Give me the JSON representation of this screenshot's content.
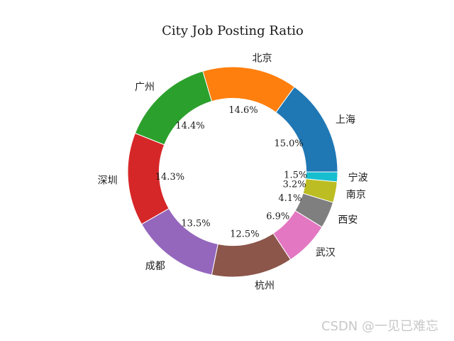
{
  "title": "City Job Posting Ratio",
  "watermark": "CSDN @一见已难忘",
  "chart_data": {
    "type": "pie",
    "subtype": "donut",
    "title": "City Job Posting Ratio",
    "legend": "none",
    "grid": false,
    "start_angle_deg": 0,
    "direction": "counterclockwise",
    "donut_hole_ratio": 0.7,
    "percent_label_position_ratio": 0.6,
    "category_label_position_ratio": 1.1,
    "slices": [
      {
        "label": "上海",
        "value": 15.0,
        "percent_text": "15.0%",
        "color": "#1f77b4"
      },
      {
        "label": "北京",
        "value": 14.6,
        "percent_text": "14.6%",
        "color": "#ff7f0e"
      },
      {
        "label": "广州",
        "value": 14.4,
        "percent_text": "14.4%",
        "color": "#2ca02c"
      },
      {
        "label": "深圳",
        "value": 14.3,
        "percent_text": "14.3%",
        "color": "#d62728"
      },
      {
        "label": "成都",
        "value": 13.5,
        "percent_text": "13.5%",
        "color": "#9467bd"
      },
      {
        "label": "杭州",
        "value": 12.5,
        "percent_text": "12.5%",
        "color": "#8c564b"
      },
      {
        "label": "武汉",
        "value": 6.9,
        "percent_text": "6.9%",
        "color": "#e377c2"
      },
      {
        "label": "西安",
        "value": 4.1,
        "percent_text": "4.1%",
        "color": "#7f7f7f"
      },
      {
        "label": "南京",
        "value": 3.2,
        "percent_text": "3.2%",
        "color": "#bcbd22"
      },
      {
        "label": "宁波",
        "value": 1.5,
        "percent_text": "1.5%",
        "color": "#17becf"
      }
    ]
  }
}
